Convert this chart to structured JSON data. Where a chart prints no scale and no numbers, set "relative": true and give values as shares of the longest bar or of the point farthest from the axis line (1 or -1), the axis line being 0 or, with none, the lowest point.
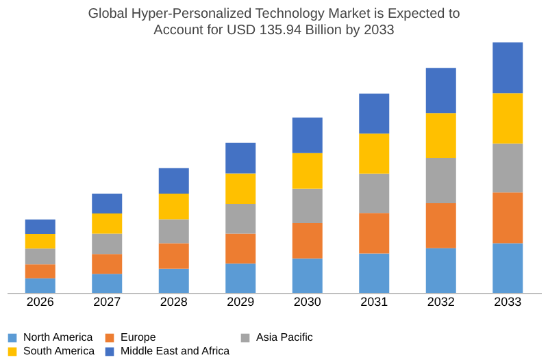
{
  "chart_data": {
    "type": "bar",
    "title": "Global Hyper-Personalized Technology Market is Expected to Account for USD 135.94 Billion by 2033",
    "categories": [
      "2026",
      "2027",
      "2028",
      "2029",
      "2030",
      "2031",
      "2032",
      "2033"
    ],
    "stacked": true,
    "relative": true,
    "legend": "bottom",
    "grid": false,
    "series": [
      {
        "name": "North America",
        "color": "#5b9bd5",
        "values": [
          0.058,
          0.076,
          0.096,
          0.117,
          0.137,
          0.157,
          0.178,
          0.198
        ]
      },
      {
        "name": "Europe",
        "color": "#ed7d31",
        "values": [
          0.056,
          0.079,
          0.102,
          0.119,
          0.142,
          0.162,
          0.18,
          0.203
        ]
      },
      {
        "name": "Asia Pacific",
        "color": "#a5a5a5",
        "values": [
          0.063,
          0.081,
          0.096,
          0.119,
          0.137,
          0.157,
          0.18,
          0.195
        ]
      },
      {
        "name": "South America",
        "color": "#ffc000",
        "values": [
          0.058,
          0.081,
          0.102,
          0.122,
          0.142,
          0.16,
          0.18,
          0.201
        ]
      },
      {
        "name": "Middle East and Africa",
        "color": "#4472c4",
        "values": [
          0.058,
          0.079,
          0.102,
          0.122,
          0.142,
          0.16,
          0.18,
          0.203
        ]
      }
    ]
  }
}
